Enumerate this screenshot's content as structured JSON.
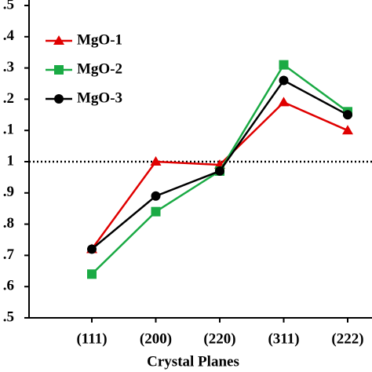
{
  "chart_data": {
    "type": "line",
    "x_label": "Crystal Planes",
    "categories": [
      "(111)",
      "(200)",
      "(220)",
      "(311)",
      "(222)"
    ],
    "series": [
      {
        "name": "MgO-1",
        "color": "#e00000",
        "marker": "triangle",
        "values": [
          0.72,
          1.0,
          0.99,
          1.19,
          1.1
        ]
      },
      {
        "name": "MgO-2",
        "color": "#1aaa44",
        "marker": "square",
        "values": [
          0.64,
          0.84,
          0.97,
          1.31,
          1.16
        ]
      },
      {
        "name": "MgO-3",
        "color": "#000000",
        "marker": "circle",
        "values": [
          0.72,
          0.89,
          0.97,
          1.26,
          1.15
        ]
      }
    ],
    "ylim": [
      0.5,
      1.5
    ],
    "yticks": [
      {
        "value": 0.5,
        "label": ".5"
      },
      {
        "value": 0.6,
        "label": ".6"
      },
      {
        "value": 0.7,
        "label": ".7"
      },
      {
        "value": 0.8,
        "label": ".8"
      },
      {
        "value": 0.9,
        "label": ".9"
      },
      1,
      {
        "value": 1.1,
        "label": ".1"
      },
      {
        "value": 1.2,
        "label": ".2"
      },
      {
        "value": 1.3,
        "label": ".3"
      },
      {
        "value": 1.4,
        "label": ".4"
      },
      {
        "value": 1.5,
        "label": ".5"
      }
    ],
    "reference_line": 1,
    "legend": "upper left"
  }
}
